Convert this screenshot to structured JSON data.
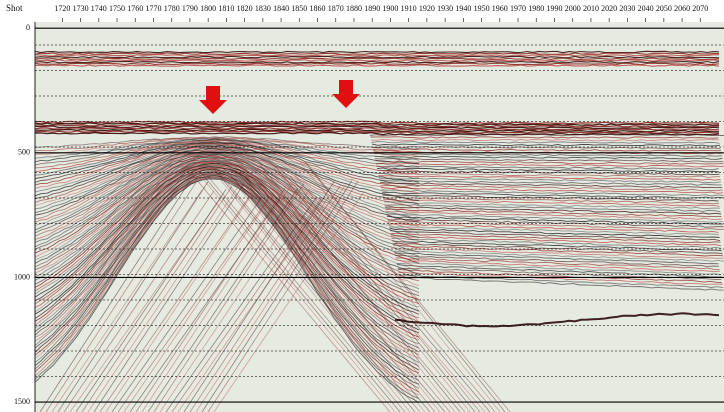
{
  "chart_data": {
    "type": "seismic",
    "x_label": "Shot",
    "xlim": [
      1705,
      2083
    ],
    "xticks": [
      1720,
      1730,
      1740,
      1750,
      1760,
      1770,
      1780,
      1790,
      1800,
      1810,
      1820,
      1830,
      1840,
      1850,
      1860,
      1870,
      1880,
      1890,
      1900,
      1910,
      1920,
      1930,
      1940,
      1950,
      1960,
      1970,
      1980,
      1990,
      2000,
      2010,
      2020,
      2030,
      2040,
      2050,
      2060,
      2070
    ],
    "ylim": [
      -25,
      1540
    ],
    "yticks": [
      0,
      500,
      1000,
      1500
    ]
  }
}
